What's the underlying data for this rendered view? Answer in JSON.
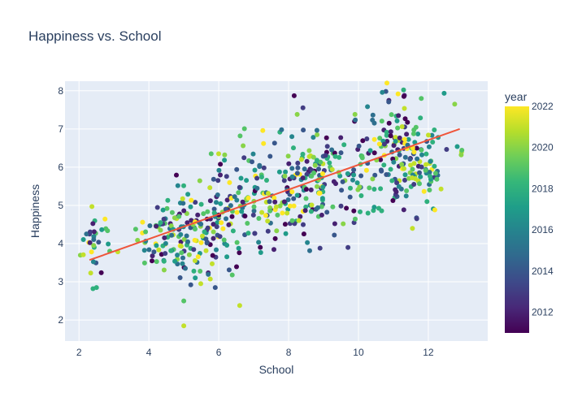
{
  "chart_data": {
    "type": "scatter",
    "title": "Happiness vs. School",
    "xlabel": "School",
    "ylabel": "Happiness",
    "xlim": [
      1.6,
      13.7
    ],
    "ylim": [
      1.45,
      8.25
    ],
    "xticks": [
      2,
      4,
      6,
      8,
      10,
      12
    ],
    "yticks": [
      2,
      3,
      4,
      5,
      6,
      7,
      8
    ],
    "grid": true,
    "colorbar": {
      "title": "year",
      "range": [
        2011,
        2022
      ],
      "ticks": [
        2012,
        2014,
        2016,
        2018,
        2020,
        2022
      ],
      "colorscale": [
        "#440154",
        "#482878",
        "#3e4989",
        "#31688e",
        "#26828e",
        "#1f9e89",
        "#35b779",
        "#6ece58",
        "#b5de2b",
        "#fde725"
      ]
    },
    "trendline": {
      "color": "#ef553b",
      "points": [
        [
          2.3,
          3.57
        ],
        [
          12.9,
          7.0
        ]
      ]
    },
    "clusters": [
      {
        "cx": 2.5,
        "cy": 4.15,
        "sx": 0.22,
        "sy": 0.5,
        "n": 30
      },
      {
        "cx": 4.6,
        "cy": 4.2,
        "sx": 0.45,
        "sy": 0.55,
        "n": 90
      },
      {
        "cx": 5.6,
        "cy": 4.5,
        "sx": 0.45,
        "sy": 0.6,
        "n": 80
      },
      {
        "cx": 6.6,
        "cy": 5.05,
        "sx": 0.4,
        "sy": 0.75,
        "n": 70
      },
      {
        "cx": 7.6,
        "cy": 5.3,
        "sx": 0.5,
        "sy": 0.6,
        "n": 70
      },
      {
        "cx": 8.6,
        "cy": 5.6,
        "sx": 0.45,
        "sy": 0.65,
        "n": 110
      },
      {
        "cx": 9.8,
        "cy": 5.7,
        "sx": 0.45,
        "sy": 0.75,
        "n": 60
      },
      {
        "cx": 11.2,
        "cy": 6.45,
        "sx": 0.5,
        "sy": 0.75,
        "n": 150
      },
      {
        "cx": 12.0,
        "cy": 5.8,
        "sx": 0.2,
        "sy": 0.35,
        "n": 25
      },
      {
        "cx": 12.9,
        "cy": 6.4,
        "sx": 0.05,
        "sy": 0.15,
        "n": 4
      }
    ],
    "extra_points": [
      {
        "x": 5.0,
        "y": 1.85,
        "year": 2021
      },
      {
        "x": 6.6,
        "y": 2.38,
        "year": 2021
      },
      {
        "x": 5.0,
        "y": 2.5,
        "year": 2019
      },
      {
        "x": 5.2,
        "y": 2.92,
        "year": 2014
      },
      {
        "x": 5.9,
        "y": 2.85,
        "year": 2014
      },
      {
        "x": 2.4,
        "y": 2.82,
        "year": 2018
      },
      {
        "x": 2.5,
        "y": 2.85,
        "year": 2018
      },
      {
        "x": 11.3,
        "y": 7.85,
        "year": 2011
      },
      {
        "x": 11.8,
        "y": 7.8,
        "year": 2019
      },
      {
        "x": 9.9,
        "y": 7.38,
        "year": 2020
      },
      {
        "x": 8.9,
        "y": 3.88,
        "year": 2013
      },
      {
        "x": 9.7,
        "y": 3.9,
        "year": 2013
      },
      {
        "x": 7.8,
        "y": 6.98,
        "year": 2015
      }
    ]
  }
}
